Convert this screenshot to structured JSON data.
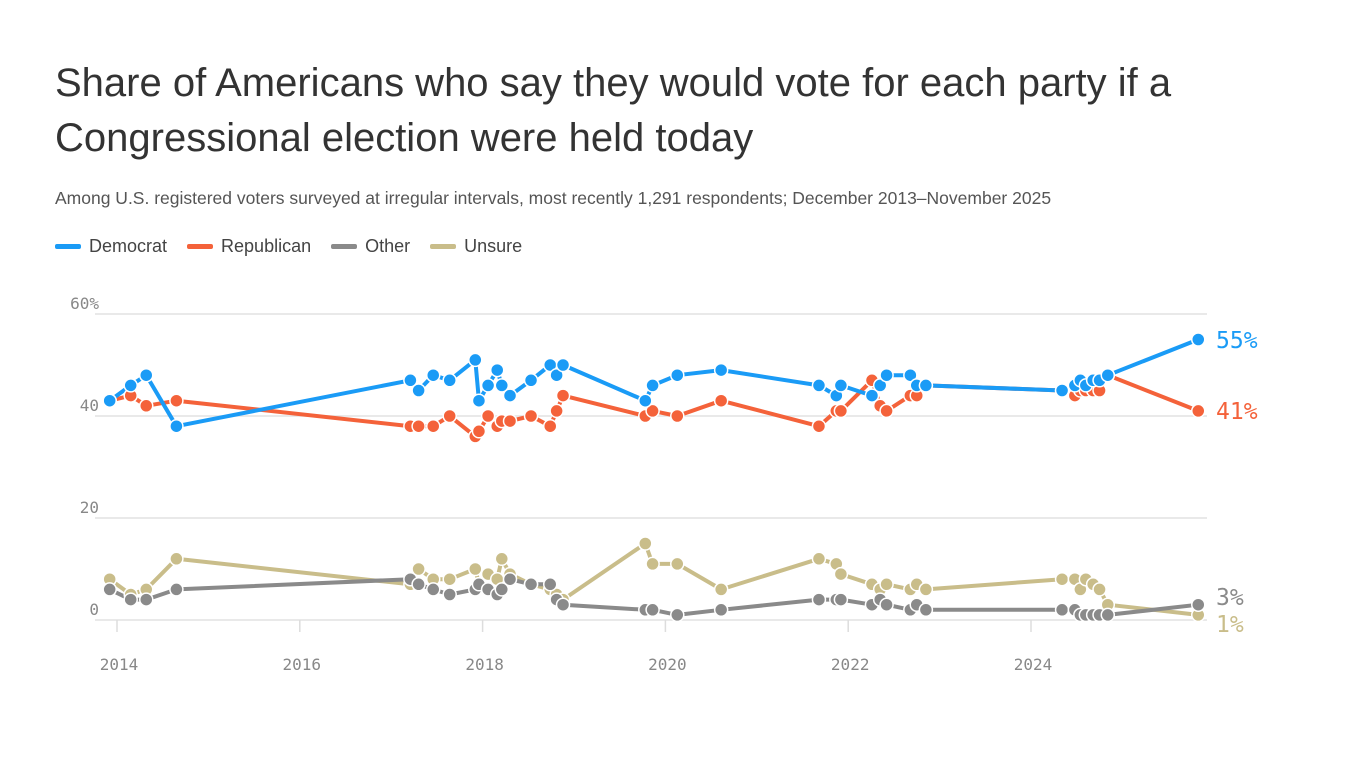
{
  "title": "Share of Americans who say they would vote for each party if a Congressional election were held today",
  "subtitle": "Among U.S. registered voters surveyed at irregular intervals, most recently 1,291 respondents; December 2013–November 2025",
  "chart_data": {
    "type": "line",
    "title": "Share of Americans who say they would vote for each party if a Congressional election were held today",
    "xlabel": "",
    "ylabel": "",
    "xlim": [
      2013.75,
      2025.9
    ],
    "ylim": [
      0,
      60
    ],
    "y_ticks": [
      {
        "v": 0,
        "label": "0"
      },
      {
        "v": 20,
        "label": "20"
      },
      {
        "v": 40,
        "label": "40"
      },
      {
        "v": 60,
        "label": "60%"
      }
    ],
    "x_ticks": [
      {
        "v": 2014,
        "label": "2014"
      },
      {
        "v": 2016,
        "label": "2016"
      },
      {
        "v": 2018,
        "label": "2018"
      },
      {
        "v": 2020,
        "label": "2020"
      },
      {
        "v": 2022,
        "label": "2022"
      },
      {
        "v": 2024,
        "label": "2024"
      }
    ],
    "grid": "horizontal",
    "legend_placement": "top-left",
    "x": [
      2013.92,
      2014.15,
      2014.32,
      2014.65,
      2017.21,
      2017.3,
      2017.46,
      2017.64,
      2017.92,
      2017.96,
      2018.06,
      2018.16,
      2018.21,
      2018.3,
      2018.53,
      2018.74,
      2018.81,
      2018.88,
      2019.78,
      2019.86,
      2020.13,
      2020.61,
      2021.68,
      2021.87,
      2021.92,
      2022.26,
      2022.35,
      2022.42,
      2022.68,
      2022.75,
      2022.85,
      2024.34,
      2024.48,
      2024.54,
      2024.6,
      2024.68,
      2024.75,
      2024.84,
      2025.83
    ],
    "series": [
      {
        "name": "Democrat",
        "color": "#1a9bf6",
        "end_label": "55%",
        "values": [
          43,
          46,
          48,
          38,
          47,
          45,
          48,
          47,
          51,
          43,
          46,
          49,
          46,
          44,
          47,
          50,
          48,
          50,
          43,
          46,
          48,
          49,
          46,
          44,
          46,
          44,
          46,
          48,
          48,
          46,
          46,
          45,
          46,
          47,
          46,
          47,
          47,
          48,
          55
        ]
      },
      {
        "name": "Republican",
        "color": "#f4623a",
        "end_label": "41%",
        "values": [
          43,
          44,
          42,
          43,
          38,
          38,
          38,
          40,
          36,
          37,
          40,
          38,
          39,
          39,
          40,
          38,
          41,
          44,
          40,
          41,
          40,
          43,
          38,
          41,
          41,
          47,
          42,
          41,
          44,
          44,
          46,
          45,
          44,
          45,
          45,
          45,
          45,
          48,
          41
        ]
      },
      {
        "name": "Other",
        "color": "#8a8a8a",
        "end_label": "3%",
        "values": [
          6,
          4,
          4,
          6,
          8,
          7,
          6,
          5,
          6,
          7,
          6,
          5,
          6,
          8,
          7,
          7,
          4,
          3,
          2,
          2,
          1,
          2,
          4,
          4,
          4,
          3,
          4,
          3,
          2,
          3,
          2,
          2,
          2,
          1,
          1,
          1,
          1,
          1,
          3
        ]
      },
      {
        "name": "Unsure",
        "color": "#c9bd8a",
        "end_label": "1%",
        "values": [
          8,
          5,
          6,
          12,
          7,
          10,
          8,
          8,
          10,
          7,
          9,
          8,
          12,
          9,
          7,
          6,
          5,
          4,
          15,
          11,
          11,
          6,
          12,
          11,
          9,
          7,
          6,
          7,
          6,
          7,
          6,
          8,
          8,
          6,
          8,
          7,
          6,
          3,
          1
        ]
      }
    ]
  }
}
